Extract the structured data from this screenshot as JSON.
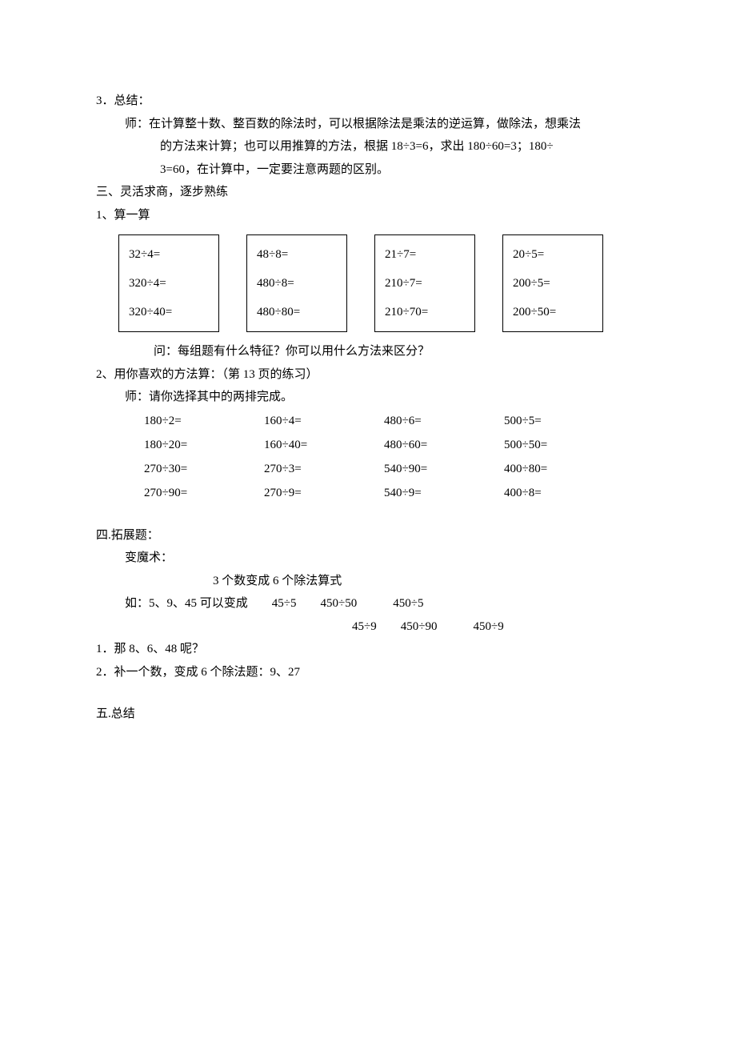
{
  "section3": {
    "header": "3．总结：",
    "line1": "师：在计算整十数、整百数的除法时，可以根据除法是乘法的逆运算，做除法，想乘法",
    "line2": "的方法来计算；也可以用推算的方法，根据 18÷3=6，求出 180÷60=3；180÷",
    "line3": "3=60，在计算中，一定要注意两题的区别。"
  },
  "sectionThree": {
    "header": "三、灵活求商，逐步熟练",
    "q1_header": "1、算一算",
    "boxes": [
      [
        "32÷4=",
        "320÷4=",
        "320÷40="
      ],
      [
        "48÷8=",
        "480÷8=",
        "480÷80="
      ],
      [
        "21÷7=",
        "210÷7=",
        "210÷70="
      ],
      [
        "20÷5=",
        "200÷5=",
        "200÷50="
      ]
    ],
    "q1_question": "问：每组题有什么特征？你可以用什么方法来区分？",
    "q2_header": "2、用你喜欢的方法算：（第 13 页的练习）",
    "q2_sub": "师：请你选择其中的两排完成。",
    "grid": [
      [
        "180÷2=",
        "160÷4=",
        "480÷6=",
        "500÷5="
      ],
      [
        "180÷20=",
        "160÷40=",
        "480÷60=",
        "500÷50="
      ],
      [
        "270÷30=",
        "270÷3=",
        "540÷90=",
        "400÷80="
      ],
      [
        "270÷90=",
        "270÷9=",
        "540÷9=",
        "400÷8="
      ]
    ]
  },
  "sectionFour": {
    "header": "四.拓展题：",
    "sub": "变魔术：",
    "rule": "3 个数变成 6 个除法算式",
    "example1": "如：5、9、45 可以变成　　45÷5　　450÷50　　　450÷5",
    "example2": "45÷9　　450÷90　　　450÷9",
    "q1": "1．那 8、6、48 呢？",
    "q2": "2．补一个数，变成 6 个除法题：9、27"
  },
  "sectionFive": {
    "header": "五.总结"
  }
}
